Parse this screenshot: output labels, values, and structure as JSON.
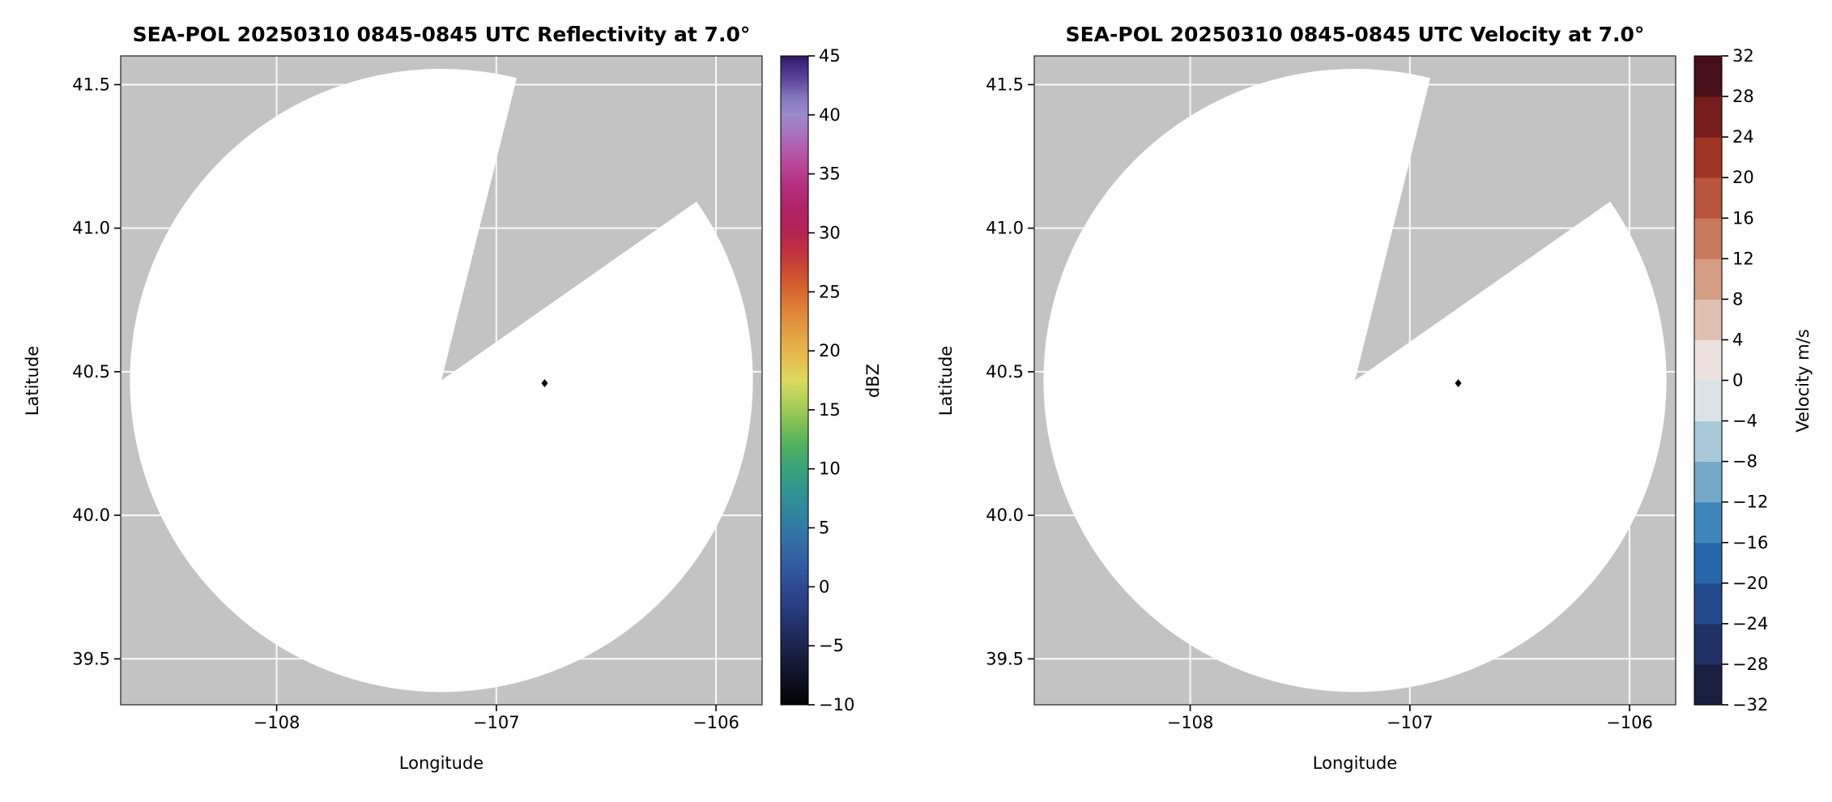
{
  "figure_background": "#ffffff",
  "chart_data": [
    {
      "type": "heatmap",
      "variant": "radar-ppi",
      "title": "SEA-POL 20250310 0845-0845 UTC Reflectivity at 7.0°",
      "xlabel": "Longitude",
      "ylabel": "Latitude",
      "xlim": [
        -108.71,
        -105.79
      ],
      "ylim": [
        39.34,
        41.6
      ],
      "xticks": {
        "values": [
          -108,
          -107,
          -106
        ],
        "labels": [
          "−108",
          "−107",
          "−106"
        ]
      },
      "yticks": {
        "values": [
          39.5,
          40.0,
          40.5,
          41.0,
          41.5
        ],
        "labels": [
          "39.5",
          "40.0",
          "40.5",
          "41.0",
          "41.5"
        ]
      },
      "grid": true,
      "grid_color": "#ffffff",
      "background_color": "#c3c3c3",
      "scan": {
        "center": [
          -107.25,
          40.47
        ],
        "radius_deg": 1.085,
        "fill_color": "#ffffff",
        "missing_sector_azimuth_deg": [
          14,
          55
        ]
      },
      "marker": {
        "lon": -106.78,
        "lat": 40.46,
        "shape": "diamond",
        "color": "#000000"
      },
      "colorbar": {
        "label": "dBZ",
        "min": -10,
        "max": 45,
        "style": "continuous",
        "ticks": {
          "values": [
            -10,
            -5,
            0,
            5,
            10,
            15,
            20,
            25,
            30,
            35,
            40,
            45
          ],
          "labels": [
            "−10",
            "−5",
            "0",
            "5",
            "10",
            "15",
            "20",
            "25",
            "30",
            "35",
            "40",
            "45"
          ]
        },
        "stops": [
          [
            -10,
            "#030303"
          ],
          [
            -8,
            "#0d1020"
          ],
          [
            -6,
            "#171e3c"
          ],
          [
            -4,
            "#1f2c5c"
          ],
          [
            -2,
            "#273b7c"
          ],
          [
            0,
            "#2d4a92"
          ],
          [
            2,
            "#325da1"
          ],
          [
            4,
            "#3370a5"
          ],
          [
            6,
            "#2f82a0"
          ],
          [
            8,
            "#2f9392"
          ],
          [
            10,
            "#36a37b"
          ],
          [
            12,
            "#52b15e"
          ],
          [
            14,
            "#83c253"
          ],
          [
            16,
            "#b8d25a"
          ],
          [
            17.5,
            "#ddd95f"
          ],
          [
            19,
            "#e5c251"
          ],
          [
            21,
            "#e5a746"
          ],
          [
            23,
            "#e08a3c"
          ],
          [
            25,
            "#d8682f"
          ],
          [
            27,
            "#cc4730"
          ],
          [
            28.5,
            "#c03140"
          ],
          [
            30,
            "#b52453"
          ],
          [
            32,
            "#b02264"
          ],
          [
            34,
            "#b52e7e"
          ],
          [
            36,
            "#b84a9c"
          ],
          [
            38,
            "#ab6cb8"
          ],
          [
            40,
            "#9c8acb"
          ],
          [
            41.5,
            "#8377bb"
          ],
          [
            43,
            "#5e469c"
          ],
          [
            44.5,
            "#3b2478"
          ],
          [
            45,
            "#2e1960"
          ]
        ]
      }
    },
    {
      "type": "heatmap",
      "variant": "radar-ppi",
      "title": "SEA-POL 20250310 0845-0845 UTC Velocity at 7.0°",
      "xlabel": "Longitude",
      "ylabel": "Latitude",
      "xlim": [
        -108.71,
        -105.79
      ],
      "ylim": [
        39.34,
        41.6
      ],
      "xticks": {
        "values": [
          -108,
          -107,
          -106
        ],
        "labels": [
          "−108",
          "−107",
          "−106"
        ]
      },
      "yticks": {
        "values": [
          39.5,
          40.0,
          40.5,
          41.0,
          41.5
        ],
        "labels": [
          "39.5",
          "40.0",
          "40.5",
          "41.0",
          "41.5"
        ]
      },
      "grid": true,
      "grid_color": "#ffffff",
      "background_color": "#c3c3c3",
      "scan": {
        "center": [
          -107.25,
          40.47
        ],
        "radius_deg": 1.085,
        "fill_color": "#ffffff",
        "missing_sector_azimuth_deg": [
          14,
          55
        ]
      },
      "marker": {
        "lon": -106.78,
        "lat": 40.46,
        "shape": "diamond",
        "color": "#000000"
      },
      "colorbar": {
        "label": "Velocity m/s",
        "min": -32,
        "max": 32,
        "style": "discrete",
        "ticks": {
          "values": [
            -32,
            -28,
            -24,
            -20,
            -16,
            -12,
            -8,
            -4,
            0,
            4,
            8,
            12,
            16,
            20,
            24,
            28,
            32
          ],
          "labels": [
            "−32",
            "−28",
            "−24",
            "−20",
            "−16",
            "−12",
            "−8",
            "−4",
            "0",
            "4",
            "8",
            "12",
            "16",
            "20",
            "24",
            "28",
            "32"
          ]
        },
        "segments": [
          "#191f40",
          "#1f3166",
          "#24498c",
          "#2766aa",
          "#3e86bb",
          "#74a9c9",
          "#a9c8d8",
          "#d9e3e8",
          "#eee2de",
          "#e0c0b1",
          "#d49d84",
          "#c87a5d",
          "#b9553b",
          "#a03425",
          "#771d1e",
          "#471019"
        ]
      }
    }
  ]
}
